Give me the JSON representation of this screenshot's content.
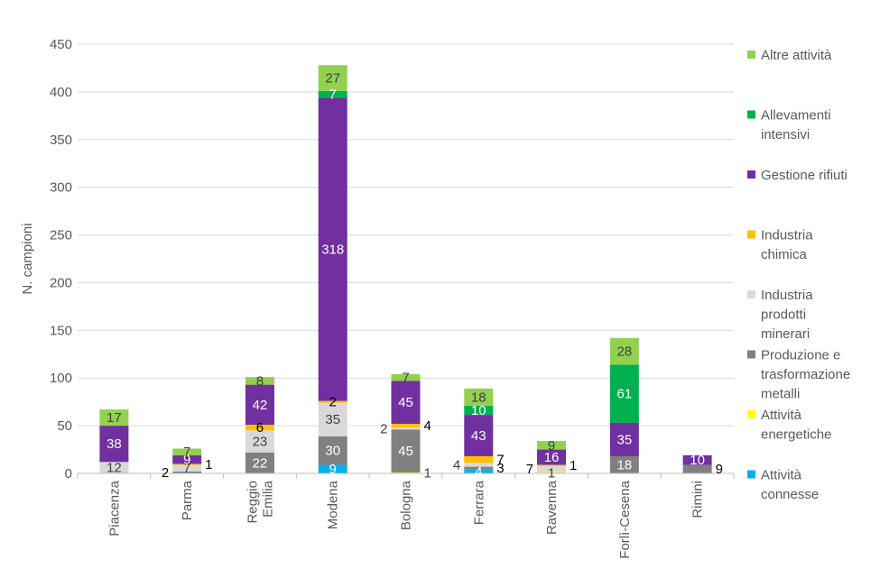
{
  "chart_data": {
    "type": "bar",
    "stacked": true,
    "title": "",
    "xlabel": "",
    "ylabel": "N. campioni",
    "ylim": [
      0,
      450
    ],
    "yticks": [
      0,
      50,
      100,
      150,
      200,
      250,
      300,
      350,
      400,
      450
    ],
    "grid": true,
    "legend_position": "right",
    "categories": [
      "Piacenza",
      "Parma",
      "Reggio Emilia",
      "Modena",
      "Bologna",
      "Ferrara",
      "Ravenna",
      "Forlì-Cesena",
      "Rimini"
    ],
    "category_lines": [
      [
        "Piacenza"
      ],
      [
        "Parma"
      ],
      [
        "Reggio",
        "Emilia"
      ],
      [
        "Modena"
      ],
      [
        "Bologna"
      ],
      [
        "Ferrara"
      ],
      [
        "Ravenna"
      ],
      [
        "Forlì-Cesena"
      ],
      [
        "Rimini"
      ]
    ],
    "series": [
      {
        "name": "Attività connesse",
        "legend_lines": [
          "Attività",
          "connesse"
        ],
        "color": "#00b0f0",
        "values": [
          0,
          0,
          0,
          9,
          0,
          4,
          0,
          0,
          0
        ]
      },
      {
        "name": "Attività energetiche",
        "legend_lines": [
          "Attività",
          "energetiche"
        ],
        "color": "#ffff00",
        "values": [
          0,
          0,
          0,
          0,
          1,
          0,
          1,
          0,
          0
        ]
      },
      {
        "name": "Produzione e trasformazione metalli",
        "legend_lines": [
          "Produzione e",
          "trasformazione",
          "metalli"
        ],
        "color": "#808080",
        "values": [
          0,
          2,
          22,
          30,
          45,
          3,
          0,
          18,
          9
        ]
      },
      {
        "name": "Industria prodotti minerari",
        "legend_lines": [
          "Industria",
          "prodotti",
          "minerari"
        ],
        "color": "#d9d9d9",
        "values": [
          12,
          7,
          23,
          35,
          2,
          4,
          7,
          0,
          0
        ]
      },
      {
        "name": "Industria chimica",
        "legend_lines": [
          "Industria",
          "chimica"
        ],
        "color": "#ffc000",
        "values": [
          0,
          1,
          6,
          2,
          4,
          7,
          1,
          0,
          0
        ]
      },
      {
        "name": "Gestione rifiuti",
        "legend_lines": [
          "Gestione rifiuti"
        ],
        "color": "#7030a0",
        "values": [
          38,
          9,
          42,
          318,
          45,
          43,
          16,
          35,
          10
        ]
      },
      {
        "name": "Allevamenti intensivi",
        "legend_lines": [
          "Allevamenti",
          "intensivi"
        ],
        "color": "#00b050",
        "values": [
          0,
          0,
          0,
          7,
          0,
          10,
          0,
          61,
          0
        ]
      },
      {
        "name": "Altre attività",
        "legend_lines": [
          "Altre attività"
        ],
        "color": "#92d050",
        "values": [
          17,
          7,
          8,
          27,
          7,
          18,
          9,
          28,
          0
        ]
      }
    ],
    "data_labels": [
      {
        "category": "Piacenza",
        "series": "Industria prodotti minerari",
        "text": "12",
        "color": "#404040",
        "pos": "inside"
      },
      {
        "category": "Piacenza",
        "series": "Gestione rifiuti",
        "text": "38",
        "color": "#ffffff",
        "pos": "inside"
      },
      {
        "category": "Piacenza",
        "series": "Altre attività",
        "text": "17",
        "color": "#404040",
        "pos": "inside"
      },
      {
        "category": "Parma",
        "series": "Produzione e trasformazione metalli",
        "text": "2",
        "color": "#000000",
        "pos": "left"
      },
      {
        "category": "Parma",
        "series": "Industria prodotti minerari",
        "text": "7",
        "color": "#404040",
        "pos": "inside"
      },
      {
        "category": "Parma",
        "series": "Industria chimica",
        "text": "1",
        "color": "#000000",
        "pos": "right"
      },
      {
        "category": "Parma",
        "series": "Gestione rifiuti",
        "text": "9",
        "color": "#ffffff",
        "pos": "inside"
      },
      {
        "category": "Parma",
        "series": "Altre attività",
        "text": "7",
        "color": "#404040",
        "pos": "inside"
      },
      {
        "category": "Reggio Emilia",
        "series": "Produzione e trasformazione metalli",
        "text": "22",
        "color": "#ffffff",
        "pos": "inside"
      },
      {
        "category": "Reggio Emilia",
        "series": "Industria prodotti minerari",
        "text": "23",
        "color": "#404040",
        "pos": "inside"
      },
      {
        "category": "Reggio Emilia",
        "series": "Industria chimica",
        "text": "6",
        "color": "#000000",
        "pos": "inside"
      },
      {
        "category": "Reggio Emilia",
        "series": "Gestione rifiuti",
        "text": "42",
        "color": "#ffffff",
        "pos": "inside"
      },
      {
        "category": "Reggio Emilia",
        "series": "Altre attività",
        "text": "8",
        "color": "#404040",
        "pos": "inside"
      },
      {
        "category": "Modena",
        "series": "Attività connesse",
        "text": "9",
        "color": "#ffffff",
        "pos": "inside"
      },
      {
        "category": "Modena",
        "series": "Produzione e trasformazione metalli",
        "text": "30",
        "color": "#ffffff",
        "pos": "inside"
      },
      {
        "category": "Modena",
        "series": "Industria prodotti minerari",
        "text": "35",
        "color": "#404040",
        "pos": "inside"
      },
      {
        "category": "Modena",
        "series": "Industria chimica",
        "text": "2",
        "color": "#000000",
        "pos": "inside"
      },
      {
        "category": "Modena",
        "series": "Gestione rifiuti",
        "text": "318",
        "color": "#ffffff",
        "pos": "inside"
      },
      {
        "category": "Modena",
        "series": "Allevamenti intensivi",
        "text": "7",
        "color": "#ffffff",
        "pos": "inside"
      },
      {
        "category": "Modena",
        "series": "Altre attività",
        "text": "27",
        "color": "#404040",
        "pos": "inside"
      },
      {
        "category": "Bologna",
        "series": "Attività energetiche",
        "text": "1",
        "color": "#404040",
        "pos": "right"
      },
      {
        "category": "Bologna",
        "series": "Produzione e trasformazione metalli",
        "text": "45",
        "color": "#ffffff",
        "pos": "inside"
      },
      {
        "category": "Bologna",
        "series": "Industria prodotti minerari",
        "text": "2",
        "color": "#404040",
        "pos": "left"
      },
      {
        "category": "Bologna",
        "series": "Industria chimica",
        "text": "4",
        "color": "#000000",
        "pos": "right"
      },
      {
        "category": "Bologna",
        "series": "Gestione rifiuti",
        "text": "45",
        "color": "#ffffff",
        "pos": "inside"
      },
      {
        "category": "Bologna",
        "series": "Altre attività",
        "text": "7",
        "color": "#404040",
        "pos": "inside"
      },
      {
        "category": "Ferrara",
        "series": "Attività connesse",
        "text": "4",
        "color": "#ffffff",
        "pos": "inside"
      },
      {
        "category": "Ferrara",
        "series": "Produzione e trasformazione metalli",
        "text": "3",
        "color": "#000000",
        "pos": "right"
      },
      {
        "category": "Ferrara",
        "series": "Industria prodotti minerari",
        "text": "4",
        "color": "#404040",
        "pos": "left"
      },
      {
        "category": "Ferrara",
        "series": "Industria chimica",
        "text": "7",
        "color": "#000000",
        "pos": "right"
      },
      {
        "category": "Ferrara",
        "series": "Gestione rifiuti",
        "text": "43",
        "color": "#ffffff",
        "pos": "inside"
      },
      {
        "category": "Ferrara",
        "series": "Allevamenti intensivi",
        "text": "10",
        "color": "#ffffff",
        "pos": "inside"
      },
      {
        "category": "Ferrara",
        "series": "Altre attività",
        "text": "18",
        "color": "#404040",
        "pos": "inside"
      },
      {
        "category": "Ravenna",
        "series": "Attività energetiche",
        "text": "1",
        "color": "#404040",
        "pos": "inside"
      },
      {
        "category": "Ravenna",
        "series": "Industria prodotti minerari",
        "text": "7",
        "color": "#000000",
        "pos": "left"
      },
      {
        "category": "Ravenna",
        "series": "Industria chimica",
        "text": "1",
        "color": "#000000",
        "pos": "right"
      },
      {
        "category": "Ravenna",
        "series": "Gestione rifiuti",
        "text": "16",
        "color": "#ffffff",
        "pos": "inside"
      },
      {
        "category": "Ravenna",
        "series": "Altre attività",
        "text": "9",
        "color": "#404040",
        "pos": "inside"
      },
      {
        "category": "Forlì-Cesena",
        "series": "Produzione e trasformazione metalli",
        "text": "18",
        "color": "#ffffff",
        "pos": "inside"
      },
      {
        "category": "Forlì-Cesena",
        "series": "Gestione rifiuti",
        "text": "35",
        "color": "#ffffff",
        "pos": "inside"
      },
      {
        "category": "Forlì-Cesena",
        "series": "Allevamenti intensivi",
        "text": "61",
        "color": "#ffffff",
        "pos": "inside"
      },
      {
        "category": "Forlì-Cesena",
        "series": "Altre attività",
        "text": "28",
        "color": "#404040",
        "pos": "inside"
      },
      {
        "category": "Rimini",
        "series": "Produzione e trasformazione metalli",
        "text": "9",
        "color": "#000000",
        "pos": "right"
      },
      {
        "category": "Rimini",
        "series": "Gestione rifiuti",
        "text": "10",
        "color": "#ffffff",
        "pos": "inside"
      }
    ],
    "legend_order": [
      "Altre attività",
      "Allevamenti intensivi",
      "Gestione rifiuti",
      "Industria chimica",
      "Industria prodotti minerari",
      "Produzione e trasformazione metalli",
      "Attività energetiche",
      "Attività connesse"
    ]
  }
}
